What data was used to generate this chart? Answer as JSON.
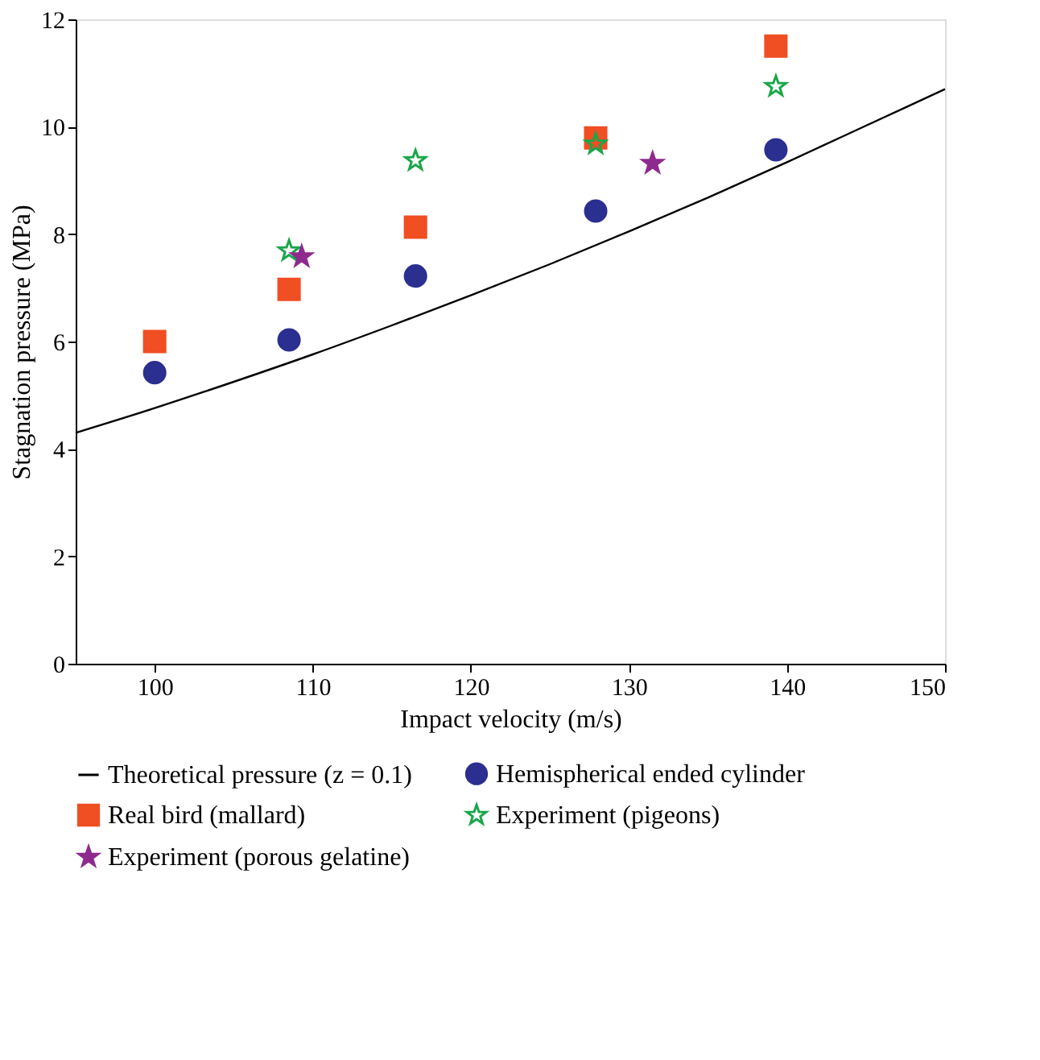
{
  "chart_data": {
    "type": "scatter",
    "xlabel": "Impact velocity (m/s)",
    "ylabel": "Stagnation pressure (MPa)",
    "xlim": [
      95,
      150
    ],
    "xticks": [
      100,
      110,
      120,
      130,
      140,
      150
    ],
    "ylim": [
      0,
      12
    ],
    "yticks": [
      0,
      2,
      4,
      6,
      8,
      10,
      12
    ],
    "grid": false,
    "legend": "bottom",
    "series": [
      {
        "name": "Theoretical pressure (z = 0.1)",
        "type": "line",
        "color": "#000000",
        "marker": "none",
        "line_style": "solid",
        "x": [
          95,
          100,
          105,
          110,
          115,
          120,
          125,
          130,
          135,
          140,
          145,
          150
        ],
        "values": [
          4.3,
          4.76,
          5.25,
          5.76,
          6.3,
          6.86,
          7.44,
          8.05,
          8.68,
          9.34,
          10.02,
          10.7
        ]
      },
      {
        "name": "Hemispherical ended cylinder",
        "color": "#2b2f8f",
        "marker": "circle",
        "x": [
          100,
          108.5,
          116.5,
          127.9,
          139.3
        ],
        "values": [
          5.42,
          6.03,
          7.22,
          8.43,
          9.57
        ]
      },
      {
        "name": "Real bird (mallard)",
        "color": "#f04e23",
        "marker": "square",
        "x": [
          100,
          108.5,
          116.5,
          127.9,
          139.3
        ],
        "values": [
          6.0,
          6.97,
          8.13,
          9.79,
          11.5
        ]
      },
      {
        "name": "Experiment (pigeons)",
        "color": "#1aa64a",
        "marker": "star",
        "x": [
          108.5,
          116.5,
          127.9,
          139.3
        ],
        "values": [
          7.69,
          9.37,
          9.68,
          10.75
        ]
      },
      {
        "name": "Experiment (porous gelatine)",
        "color": "#8e2a8e",
        "marker": "star",
        "x": [
          109.3,
          131.5
        ],
        "values": [
          7.58,
          9.32
        ]
      }
    ]
  }
}
